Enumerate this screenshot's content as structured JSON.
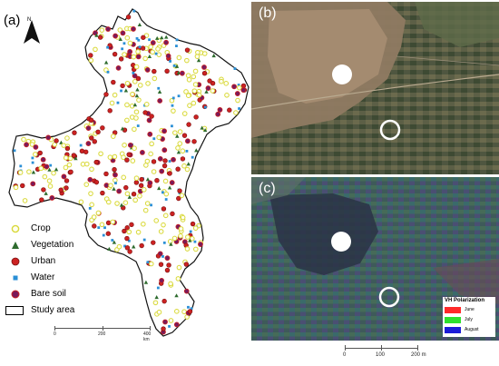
{
  "panels": {
    "a": {
      "label": "(a)",
      "north_label": "N",
      "legend": [
        {
          "label": "Crop",
          "symbol": "open-circle",
          "color": "#e8e84a"
        },
        {
          "label": "Vegetation",
          "symbol": "triangle",
          "color": "#2e6b2e"
        },
        {
          "label": "Urban",
          "symbol": "circle",
          "color": "#cc2222"
        },
        {
          "label": "Water",
          "symbol": "square",
          "color": "#2a8fd6"
        },
        {
          "label": "Bare soil",
          "symbol": "circle",
          "color": "#7a1a5a"
        },
        {
          "label": "Study area",
          "symbol": "outline-box",
          "color": "#000000"
        }
      ],
      "scale": {
        "labels": [
          "0",
          "200",
          "400 km"
        ]
      }
    },
    "b": {
      "label": "(b)"
    },
    "c": {
      "label": "(c)",
      "vh_legend": {
        "title": "VH Polarization",
        "items": [
          {
            "label": "June",
            "color": "#ff2a2a"
          },
          {
            "label": "July",
            "color": "#2ee02e"
          },
          {
            "label": "August",
            "color": "#1c1cd8"
          }
        ]
      },
      "scale": {
        "labels": [
          "0",
          "100",
          "200 m"
        ]
      }
    }
  }
}
